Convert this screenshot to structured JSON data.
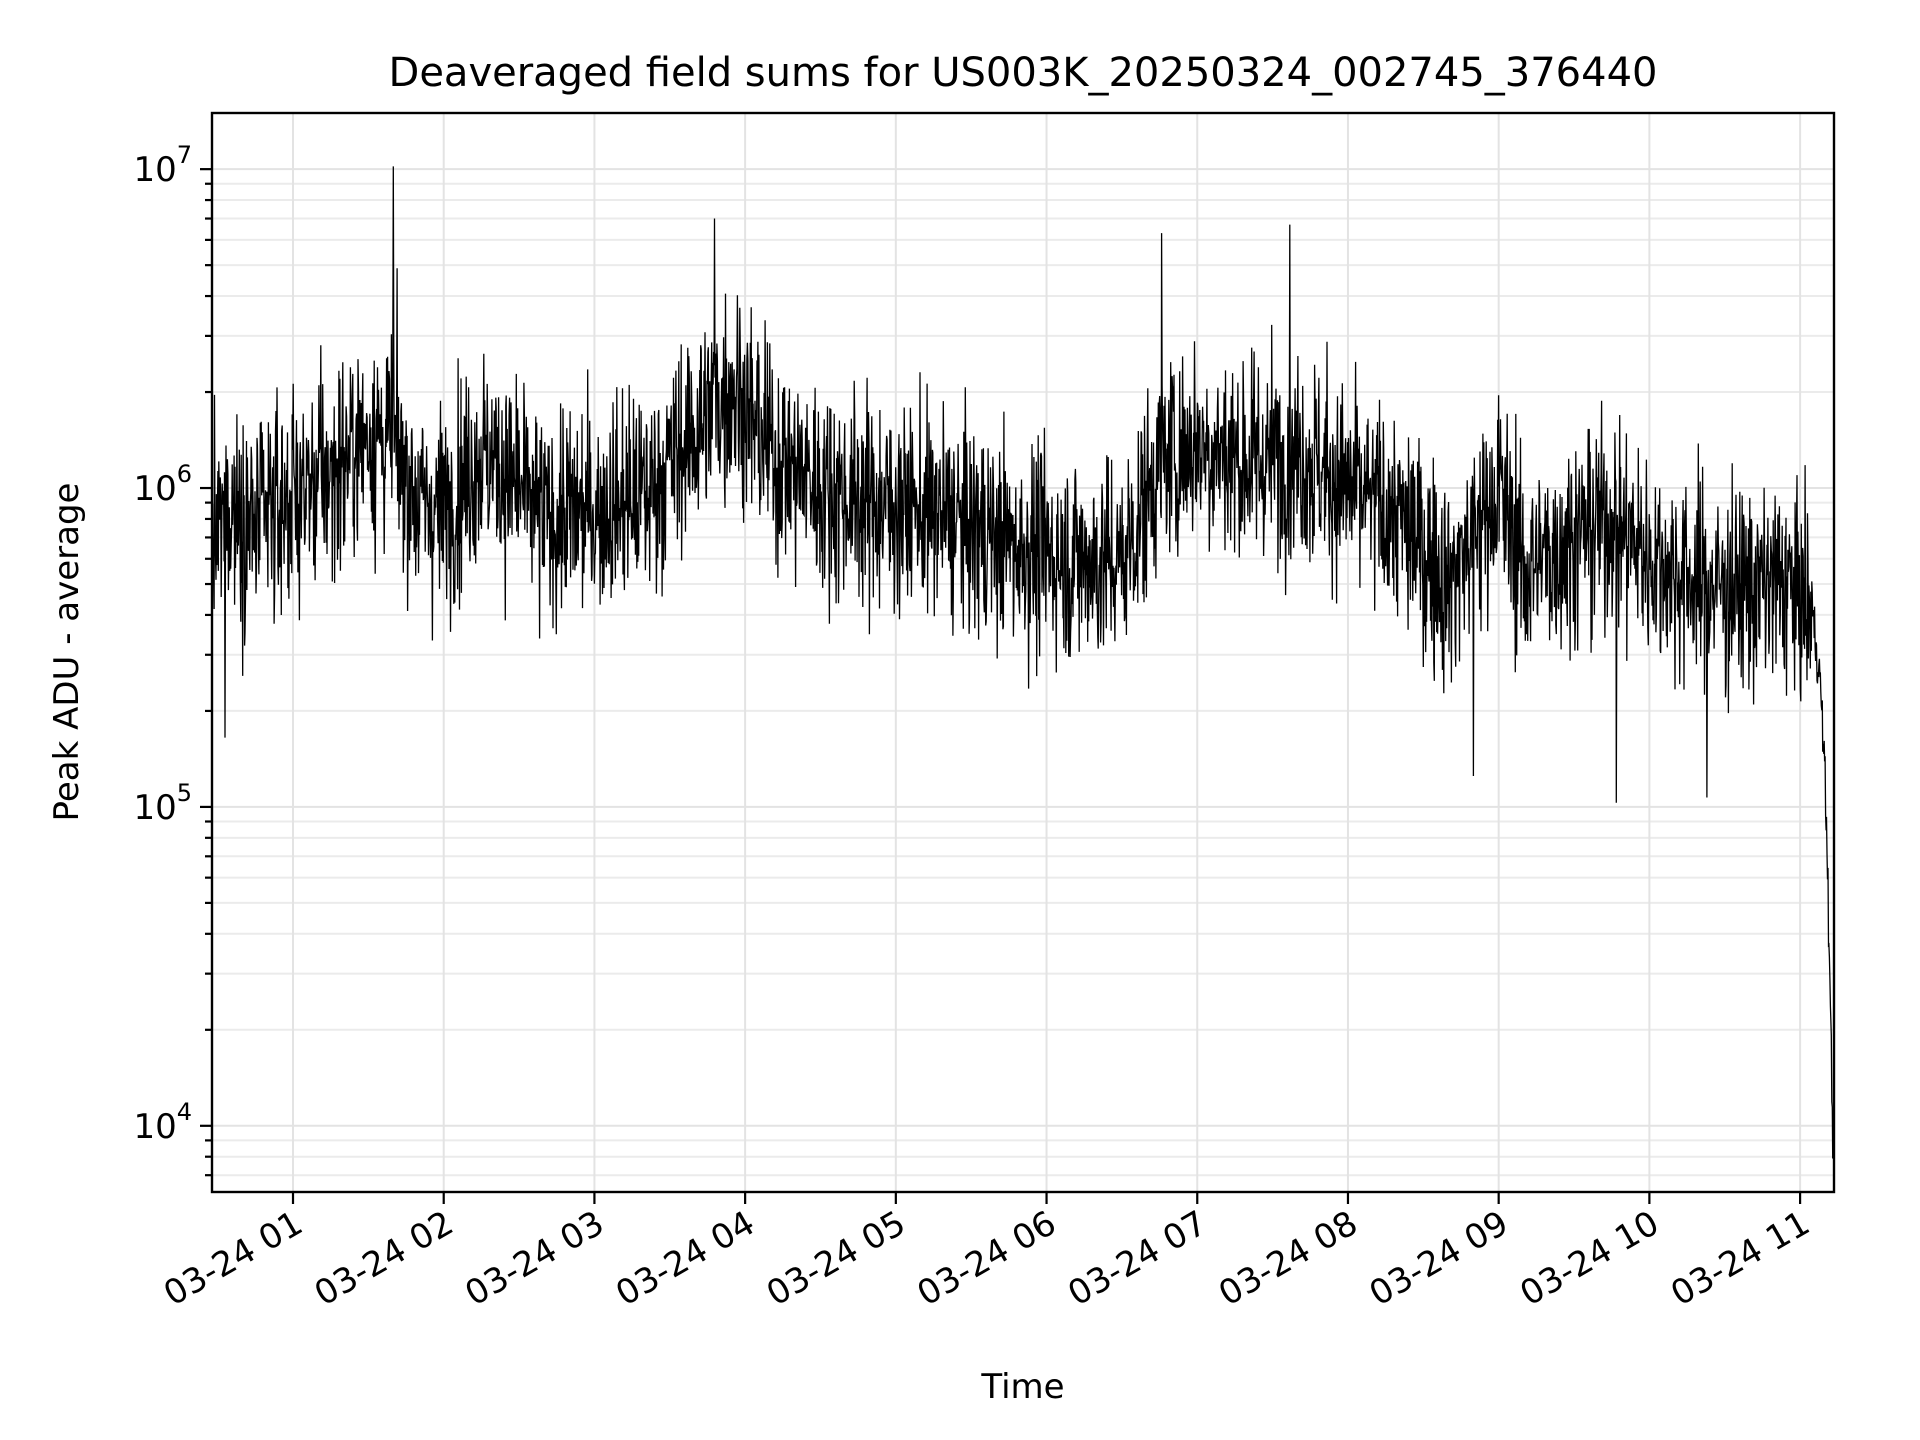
{
  "chart_data": {
    "type": "line",
    "title": "Deaveraged field sums for US003K_20250324_002745_376440",
    "xlabel": "Time",
    "ylabel": "Peak ADU - average",
    "xscale": "time",
    "yscale": "log",
    "xlim": [
      "2025-03-24T00:27:45",
      "2025-03-24T11:13:30"
    ],
    "ylim": [
      6200,
      15000000
    ],
    "x_ticks": [
      "03-24 01",
      "03-24 02",
      "03-24 03",
      "03-24 04",
      "03-24 05",
      "03-24 06",
      "03-24 07",
      "03-24 08",
      "03-24 09",
      "03-24 10",
      "03-24 11"
    ],
    "y_ticks": [
      {
        "base": "10",
        "exp": "4",
        "value": 10000
      },
      {
        "base": "10",
        "exp": "5",
        "value": 100000
      },
      {
        "base": "10",
        "exp": "6",
        "value": 1000000
      },
      {
        "base": "10",
        "exp": "7",
        "value": 10000000
      }
    ],
    "grid": true,
    "legend": "none",
    "colors": {
      "line": "#000000",
      "grid": "#e3e3e3",
      "frame": "#000000"
    },
    "series": [
      {
        "points": [
          [
            "2025-03-24T00:28",
            650000
          ],
          [
            "2025-03-24T00:35",
            900000
          ],
          [
            "2025-03-24T00:45",
            750000
          ],
          [
            "2025-03-24T01:00",
            950000
          ],
          [
            "2025-03-24T01:15",
            1100000
          ],
          [
            "2025-03-24T01:30",
            1500000
          ],
          [
            "2025-03-24T01:40",
            1400000
          ],
          [
            "2025-03-24T01:50",
            900000
          ],
          [
            "2025-03-24T02:00",
            850000
          ],
          [
            "2025-03-24T02:15",
            1300000
          ],
          [
            "2025-03-24T02:25",
            1100000
          ],
          [
            "2025-03-24T02:40",
            800000
          ],
          [
            "2025-03-24T03:00",
            850000
          ],
          [
            "2025-03-24T03:20",
            950000
          ],
          [
            "2025-03-24T03:40",
            1500000
          ],
          [
            "2025-03-24T03:55",
            2100000
          ],
          [
            "2025-03-24T04:10",
            1300000
          ],
          [
            "2025-03-24T04:30",
            1000000
          ],
          [
            "2025-03-24T04:50",
            900000
          ],
          [
            "2025-03-24T05:10",
            850000
          ],
          [
            "2025-03-24T05:30",
            750000
          ],
          [
            "2025-03-24T05:50",
            650000
          ],
          [
            "2025-03-24T06:10",
            600000
          ],
          [
            "2025-03-24T06:30",
            580000
          ],
          [
            "2025-03-24T06:45",
            1200000
          ],
          [
            "2025-03-24T07:00",
            1400000
          ],
          [
            "2025-03-24T07:20",
            1200000
          ],
          [
            "2025-03-24T07:40",
            1300000
          ],
          [
            "2025-03-24T08:00",
            1000000
          ],
          [
            "2025-03-24T08:20",
            800000
          ],
          [
            "2025-03-24T08:40",
            500000
          ],
          [
            "2025-03-24T09:00",
            1000000
          ],
          [
            "2025-03-24T09:10",
            550000
          ],
          [
            "2025-03-24T09:30",
            700000
          ],
          [
            "2025-03-24T09:45",
            800000
          ],
          [
            "2025-03-24T10:00",
            600000
          ],
          [
            "2025-03-24T10:20",
            500000
          ],
          [
            "2025-03-24T10:40",
            480000
          ],
          [
            "2025-03-24T10:55",
            500000
          ],
          [
            "2025-03-24T11:05",
            400000
          ],
          [
            "2025-03-24T11:08",
            250000
          ],
          [
            "2025-03-24T11:10",
            120000
          ],
          [
            "2025-03-24T11:11",
            60000
          ],
          [
            "2025-03-24T11:12",
            25000
          ],
          [
            "2025-03-24T11:13",
            9000
          ]
        ],
        "spikes": [
          [
            "2025-03-24T01:40",
            10200000
          ],
          [
            "2025-03-24T03:48",
            7000000
          ],
          [
            "2025-03-24T06:46",
            6300000
          ],
          [
            "2025-03-24T07:37",
            6700000
          ],
          [
            "2025-03-24T00:33",
            165000
          ],
          [
            "2025-03-24T08:50",
            125000
          ],
          [
            "2025-03-24T09:47",
            103000
          ],
          [
            "2025-03-24T10:23",
            107000
          ]
        ],
        "noise_decades": 0.5
      }
    ]
  }
}
